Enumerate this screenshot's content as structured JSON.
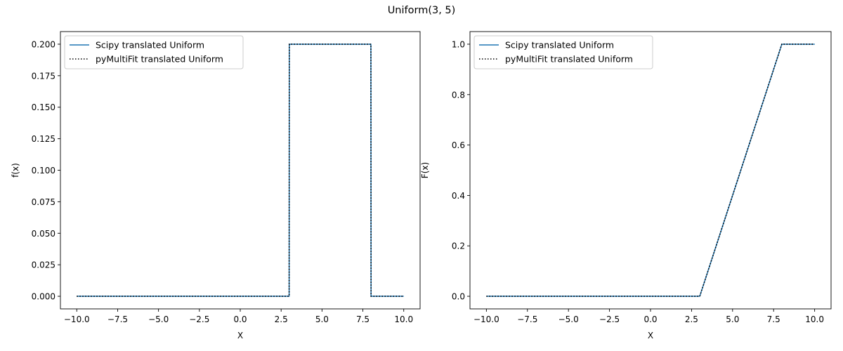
{
  "suptitle": "Uniform(3, 5)",
  "colors": {
    "scipy_line": "#1f77b4",
    "pymultifit_line": "#000000",
    "axes": "#000000",
    "legend_edge": "#cccccc"
  },
  "chart_data": [
    {
      "type": "line",
      "title": "",
      "xlabel": "X",
      "ylabel": "f(x)",
      "xlim": [
        -11,
        11
      ],
      "ylim": [
        -0.01,
        0.21
      ],
      "xticks": [
        -10.0,
        -7.5,
        -5.0,
        -2.5,
        0.0,
        2.5,
        5.0,
        7.5,
        10.0
      ],
      "xtick_labels": [
        "−10.0",
        "−7.5",
        "−5.0",
        "−2.5",
        "0.0",
        "2.5",
        "5.0",
        "7.5",
        "10.0"
      ],
      "yticks": [
        0.0,
        0.025,
        0.05,
        0.075,
        0.1,
        0.125,
        0.15,
        0.175,
        0.2
      ],
      "ytick_labels": [
        "0.000",
        "0.025",
        "0.050",
        "0.075",
        "0.100",
        "0.125",
        "0.150",
        "0.175",
        "0.200"
      ],
      "legend_position": "upper-left",
      "grid": false,
      "series": [
        {
          "name": "Scipy translated Uniform",
          "style": "solid",
          "x": [
            -10,
            2.99,
            3.0,
            7.99,
            8.0,
            10
          ],
          "y": [
            0,
            0,
            0.2,
            0.2,
            0,
            0
          ]
        },
        {
          "name": "pyMultiFit translated Uniform",
          "style": "dotted",
          "x": [
            -10,
            2.99,
            3.0,
            7.99,
            8.0,
            10
          ],
          "y": [
            0,
            0,
            0.2,
            0.2,
            0,
            0
          ]
        }
      ]
    },
    {
      "type": "line",
      "title": "",
      "xlabel": "X",
      "ylabel": "F(x)",
      "xlim": [
        -11,
        11
      ],
      "ylim": [
        -0.05,
        1.05
      ],
      "xticks": [
        -10.0,
        -7.5,
        -5.0,
        -2.5,
        0.0,
        2.5,
        5.0,
        7.5,
        10.0
      ],
      "xtick_labels": [
        "−10.0",
        "−7.5",
        "−5.0",
        "−2.5",
        "0.0",
        "2.5",
        "5.0",
        "7.5",
        "10.0"
      ],
      "yticks": [
        0.0,
        0.2,
        0.4,
        0.6,
        0.8,
        1.0
      ],
      "ytick_labels": [
        "0.0",
        "0.2",
        "0.4",
        "0.6",
        "0.8",
        "1.0"
      ],
      "legend_position": "upper-left",
      "grid": false,
      "series": [
        {
          "name": "Scipy translated Uniform",
          "style": "solid",
          "x": [
            -10,
            3,
            8,
            10
          ],
          "y": [
            0,
            0,
            1,
            1
          ]
        },
        {
          "name": "pyMultiFit translated Uniform",
          "style": "dotted",
          "x": [
            -10,
            3,
            8,
            10
          ],
          "y": [
            0,
            0,
            1,
            1
          ]
        }
      ]
    }
  ]
}
